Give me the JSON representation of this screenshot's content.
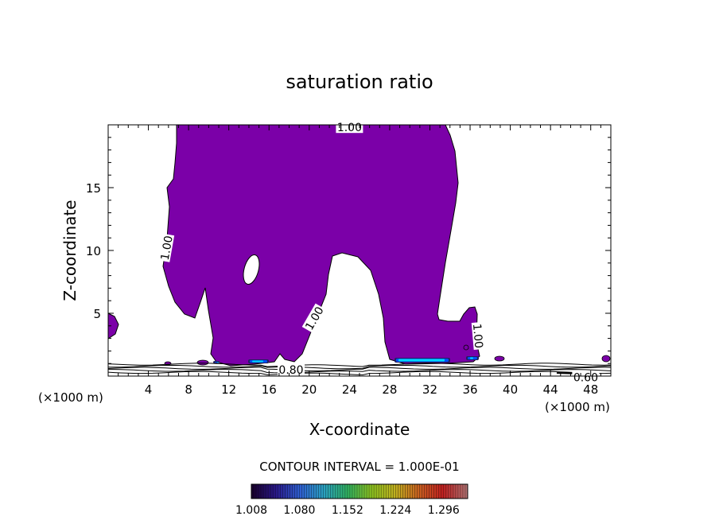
{
  "chart_data": {
    "type": "heatmap",
    "title": "saturation ratio",
    "xlabel": "X-coordinate",
    "ylabel": "Z-coordinate",
    "x_unit_left": "(×1000 m)",
    "x_unit_right": "(×1000 m)",
    "xlim": [
      0,
      50
    ],
    "ylim": [
      0,
      20
    ],
    "x_ticks": [
      4,
      8,
      12,
      16,
      20,
      24,
      28,
      32,
      36,
      40,
      44,
      48
    ],
    "x_tick_labels": [
      "4",
      "8",
      "12",
      "16",
      "20",
      "24",
      "28",
      "32",
      "36",
      "40",
      "44",
      "48"
    ],
    "y_ticks": [
      5,
      10,
      15
    ],
    "y_tick_labels": [
      "5",
      "10",
      "15"
    ],
    "contour_labels": [
      {
        "text": "1.00",
        "x": 24,
        "z": 19.8,
        "rotate": 0
      },
      {
        "text": "1.00",
        "x": 5.8,
        "z": 10.2,
        "rotate": -80
      },
      {
        "text": "1.00",
        "x": 20.5,
        "z": 4.6,
        "rotate": -60
      },
      {
        "text": "1.00",
        "x": 36.8,
        "z": 3.2,
        "rotate": 85
      },
      {
        "text": "0.80",
        "x": 18.2,
        "z": 0.5,
        "rotate": 0
      },
      {
        "text": "0.60",
        "x": 47.5,
        "z": -0.1,
        "rotate": 0
      }
    ],
    "contour_interval_text": "CONTOUR INTERVAL = 1.000E-01",
    "colorbar": {
      "min": 1.008,
      "max": 1.332,
      "tick_labels": [
        "1.008",
        "1.080",
        "1.152",
        "1.224",
        "1.296"
      ],
      "colors": [
        "#1a0030",
        "#2a1a8a",
        "#2f5fd0",
        "#2aa0c0",
        "#30b060",
        "#8ac020",
        "#c0b020",
        "#c86020",
        "#c02020",
        "#b07070"
      ]
    },
    "fill_color": "#7b00a8",
    "highlight_colors": [
      "#00d8ff",
      "#0050ff",
      "#202060"
    ]
  }
}
